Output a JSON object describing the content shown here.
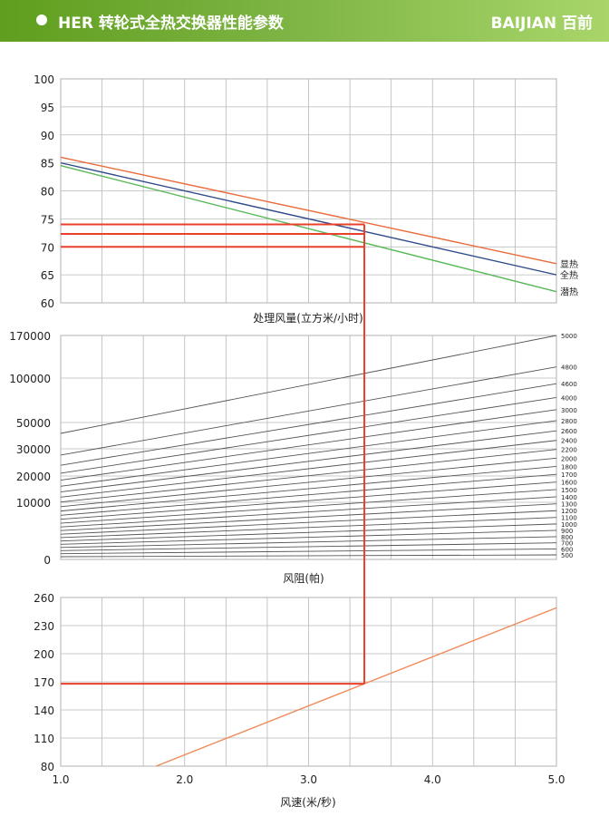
{
  "header": {
    "title": "HER  转轮式全热交换器性能参数",
    "brand": "BAIJIAN 百前"
  },
  "chart_data": [
    {
      "type": "line",
      "title": "",
      "xlabel": "",
      "ylabel": "",
      "x_range": [
        1.0,
        5.0
      ],
      "ylim": [
        60,
        100
      ],
      "yticks": [
        "100",
        "95",
        "90",
        "85",
        "80",
        "75",
        "70",
        "65",
        "60"
      ],
      "yticks_values": [
        100,
        95,
        90,
        85,
        80,
        75,
        70,
        65,
        60
      ],
      "grid": true,
      "series": [
        {
          "name": "显热",
          "color": "#e96a3a",
          "x": [
            1.0,
            5.0
          ],
          "y": [
            86.0,
            67.0
          ]
        },
        {
          "name": "全热",
          "color": "#2f4a8a",
          "x": [
            1.0,
            5.0
          ],
          "y": [
            85.0,
            65.0
          ]
        },
        {
          "name": "潜热",
          "color": "#58b858",
          "x": [
            1.0,
            5.0
          ],
          "y": [
            84.5,
            62.0
          ]
        }
      ],
      "reference_lines": [
        {
          "color": "#e8402a",
          "x": [
            1.0,
            3.45
          ],
          "y": [
            74.0,
            74.0
          ]
        },
        {
          "color": "#e8402a",
          "x": [
            1.0,
            3.45
          ],
          "y": [
            72.3,
            72.3
          ]
        },
        {
          "color": "#e8402a",
          "x": [
            1.0,
            3.45
          ],
          "y": [
            70.0,
            70.0
          ]
        }
      ]
    },
    {
      "type": "line",
      "title": "处理风量(立方米/小时)",
      "xlabel": "",
      "ylabel": "",
      "x_range": [
        1.0,
        5.0
      ],
      "yticks": [
        "170000",
        "100000",
        "50000",
        "30000",
        "20000",
        "10000",
        "0"
      ],
      "grid": true,
      "series_labels": [
        "5000",
        "4800",
        "4600",
        "4000",
        "3000",
        "2800",
        "2600",
        "2400",
        "2200",
        "2000",
        "1800",
        "1700",
        "1600",
        "1500",
        "1400",
        "1300",
        "1200",
        "1100",
        "1000",
        "900",
        "800",
        "700",
        "600",
        "500"
      ],
      "line_color": "#555555"
    },
    {
      "type": "line",
      "title": "风阻(帕)",
      "xlabel": "风速(米/秒)",
      "ylabel": "",
      "x_range": [
        1.0,
        5.0
      ],
      "xticks": [
        "1.0",
        "2.0",
        "3.0",
        "4.0",
        "5.0"
      ],
      "xticks_values": [
        1.0,
        2.0,
        3.0,
        4.0,
        5.0
      ],
      "ylim": [
        80,
        260
      ],
      "yticks": [
        "260",
        "230",
        "200",
        "170",
        "140",
        "110",
        "80"
      ],
      "yticks_values": [
        260,
        230,
        200,
        170,
        140,
        110,
        80
      ],
      "grid": true,
      "series": [
        {
          "name": "",
          "color": "#f08a5a",
          "x": [
            1.77,
            5.0
          ],
          "y": [
            80,
            249
          ]
        }
      ],
      "reference_lines": [
        {
          "color": "#e8402a",
          "x": [
            1.0,
            3.45
          ],
          "y": [
            168,
            168
          ]
        }
      ],
      "reference_vertical": {
        "color": "#e8402a",
        "x": 3.45,
        "y_top_chart1": 74.0,
        "y_bottom_chart3": 168
      }
    }
  ]
}
